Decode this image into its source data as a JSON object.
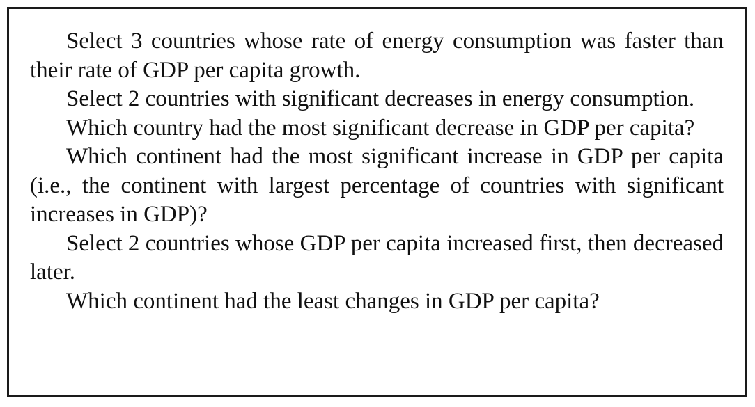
{
  "questions": [
    "Select 3 countries whose rate of energy consumption was faster than their rate of GDP per capita growth.",
    "Select 2 countries with significant decreases in energy consumption.",
    "Which country had the most significant decrease in GDP per capita?",
    "Which continent had the most significant increase in GDP per capita (i.e., the continent with largest percentage of countries with significant increases in GDP)?",
    "Select 2 countries whose GDP per capita increased first, then decreased later.",
    "Which continent had the least changes in GDP per capita?"
  ]
}
